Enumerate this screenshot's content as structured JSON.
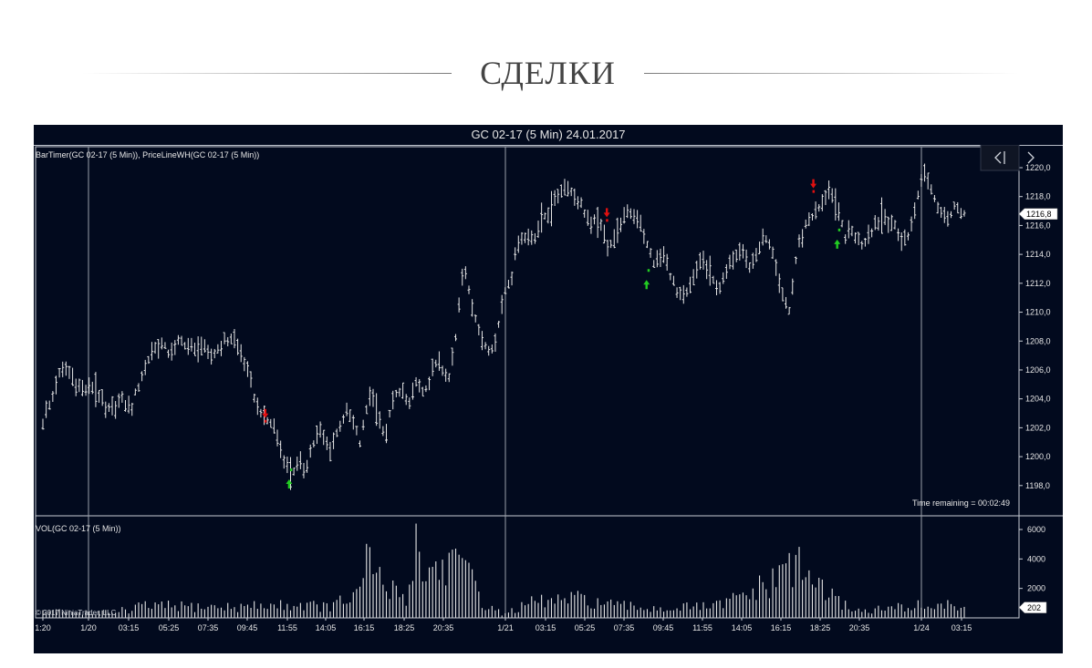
{
  "heading": {
    "title": "СДЕЛКИ"
  },
  "chart_title": "GC 02-17 (5 Min)  24.01.2017",
  "colors": {
    "background": "#020a1e",
    "bars": "#e6e6e6",
    "sell": "#e01010",
    "buy": "#22cc22",
    "grid": "#c8ccd4"
  },
  "icons": {
    "prev": "chevron-left-icon",
    "next": "chevron-right-icon"
  },
  "chart_data": [
    {
      "type": "ohlc",
      "indicator_label": "BarTimer(GC 02-17 (5 Min)), PriceLineWH(GC 02-17 (5 Min))",
      "ylim": [
        1196.5,
        1221.5
      ],
      "y_ticks": [
        "1220,0",
        "1218,0",
        "1216,0",
        "1214,0",
        "1212,0",
        "1210,0",
        "1208,0",
        "1206,0",
        "1204,0",
        "1202,0",
        "1200,0",
        "1198,0"
      ],
      "last_price": "1216,8",
      "time_remaining": "Time remaining = 00:02:49",
      "x_ticks": [
        "1:20",
        "1/20",
        "03:15",
        "05:25",
        "07:35",
        "09:45",
        "11:55",
        "14:05",
        "16:15",
        "18:25",
        "20:35",
        "1/21",
        "03:15",
        "05:25",
        "07:35",
        "09:45",
        "11:55",
        "14:05",
        "16:15",
        "18:25",
        "20:35",
        "1/24",
        "03:15"
      ],
      "session_breaks": [
        "1/20",
        "1/21",
        "1/24"
      ],
      "price_path": [
        [
          0,
          1202.3
        ],
        [
          1,
          1203.8
        ],
        [
          2,
          1205.6
        ],
        [
          3,
          1206.0
        ],
        [
          4,
          1205.2
        ],
        [
          5,
          1204.6
        ],
        [
          6,
          1204.8
        ],
        [
          7,
          1204.3
        ],
        [
          8,
          1203.0
        ],
        [
          9,
          1203.4
        ],
        [
          10,
          1204.0
        ],
        [
          11,
          1203.1
        ],
        [
          12,
          1204.8
        ],
        [
          13,
          1206.4
        ],
        [
          14,
          1207.4
        ],
        [
          15,
          1207.7
        ],
        [
          16,
          1207.0
        ],
        [
          17,
          1207.8
        ],
        [
          18,
          1207.9
        ],
        [
          19,
          1207.2
        ],
        [
          20,
          1207.6
        ],
        [
          21,
          1206.8
        ],
        [
          22,
          1207.5
        ],
        [
          23,
          1207.9
        ],
        [
          24,
          1208.4
        ],
        [
          25,
          1207.0
        ],
        [
          26,
          1205.5
        ],
        [
          27,
          1203.5
        ],
        [
          28,
          1202.6
        ],
        [
          29,
          1202.2
        ],
        [
          30,
          1200.5
        ],
        [
          31,
          1198.7
        ],
        [
          32,
          1199.4
        ],
        [
          33,
          1199.1
        ],
        [
          34,
          1200.9
        ],
        [
          35,
          1201.8
        ],
        [
          36,
          1200.4
        ],
        [
          37,
          1201.5
        ],
        [
          38,
          1203.0
        ],
        [
          39,
          1202.5
        ],
        [
          40,
          1200.8
        ],
        [
          41,
          1204.2
        ],
        [
          42,
          1203.5
        ],
        [
          43,
          1201.2
        ],
        [
          44,
          1203.6
        ],
        [
          45,
          1204.8
        ],
        [
          46,
          1203.3
        ],
        [
          47,
          1205.2
        ],
        [
          48,
          1204.0
        ],
        [
          49,
          1205.8
        ],
        [
          50,
          1206.6
        ],
        [
          51,
          1204.9
        ],
        [
          52,
          1208.2
        ],
        [
          53,
          1213.5
        ],
        [
          54,
          1210.5
        ],
        [
          55,
          1208.4
        ],
        [
          56,
          1207.6
        ],
        [
          57,
          1207.8
        ],
        [
          58,
          1211.3
        ],
        [
          59,
          1212.5
        ],
        [
          60,
          1215.1
        ],
        [
          61,
          1215.0
        ],
        [
          62,
          1215.3
        ],
        [
          63,
          1216.5
        ],
        [
          64,
          1217.1
        ],
        [
          65,
          1218.3
        ],
        [
          66,
          1218.7
        ],
        [
          67,
          1218.0
        ],
        [
          68,
          1217.1
        ],
        [
          69,
          1215.9
        ],
        [
          70,
          1216.3
        ],
        [
          71,
          1214.6
        ],
        [
          72,
          1215.2
        ],
        [
          73,
          1216.5
        ],
        [
          74,
          1216.9
        ],
        [
          75,
          1216.5
        ],
        [
          76,
          1214.7
        ],
        [
          77,
          1213.3
        ],
        [
          78,
          1214.0
        ],
        [
          79,
          1212.7
        ],
        [
          80,
          1211.0
        ],
        [
          81,
          1211.2
        ],
        [
          82,
          1212.4
        ],
        [
          83,
          1213.8
        ],
        [
          84,
          1212.5
        ],
        [
          85,
          1211.5
        ],
        [
          86,
          1212.6
        ],
        [
          87,
          1213.7
        ],
        [
          88,
          1214.7
        ],
        [
          89,
          1212.9
        ],
        [
          90,
          1214.3
        ],
        [
          91,
          1215.3
        ],
        [
          92,
          1213.7
        ],
        [
          93,
          1211.0
        ],
        [
          94,
          1210.1
        ],
        [
          95,
          1214.4
        ],
        [
          96,
          1215.9
        ],
        [
          97,
          1216.8
        ],
        [
          98,
          1217.4
        ],
        [
          99,
          1218.4
        ],
        [
          100,
          1216.9
        ],
        [
          101,
          1215.3
        ],
        [
          102,
          1215.6
        ],
        [
          103,
          1214.7
        ],
        [
          104,
          1215.3
        ],
        [
          105,
          1216.2
        ],
        [
          106,
          1216.6
        ],
        [
          107,
          1216.0
        ],
        [
          108,
          1215.1
        ],
        [
          109,
          1215.2
        ],
        [
          110,
          1217.6
        ],
        [
          111,
          1219.8
        ],
        [
          112,
          1218.2
        ],
        [
          113,
          1217.1
        ],
        [
          114,
          1216.4
        ],
        [
          115,
          1217.4
        ],
        [
          116,
          1216.8
        ]
      ],
      "sell_markers": [
        [
          28,
          1202.8
        ],
        [
          71,
          1216.7
        ],
        [
          97,
          1218.7
        ]
      ],
      "buy_markers": [
        [
          31,
          1198.3
        ],
        [
          76,
          1212.1
        ],
        [
          100,
          1214.9
        ]
      ]
    },
    {
      "type": "bar",
      "indicator_label": "VOL(GC 02-17 (5 Min))",
      "ylim": [
        0,
        7000
      ],
      "y_ticks": [
        "6000",
        "4000",
        "2000"
      ],
      "last_volume": "202",
      "copyright": "© 2017 NinjaTrader, LLC",
      "volume_profile": [
        [
          0,
          500
        ],
        [
          9,
          400
        ],
        [
          10,
          700
        ],
        [
          11,
          300
        ],
        [
          12,
          900
        ],
        [
          24,
          800
        ],
        [
          27,
          900
        ],
        [
          33,
          1000
        ],
        [
          36,
          800
        ],
        [
          40,
          1800
        ],
        [
          41,
          4600
        ],
        [
          43,
          2200
        ],
        [
          46,
          1600
        ],
        [
          47,
          6200
        ],
        [
          48,
          3200
        ],
        [
          52,
          4400
        ],
        [
          54,
          2600
        ],
        [
          56,
          800
        ],
        [
          58,
          300
        ],
        [
          62,
          1200
        ],
        [
          68,
          1400
        ],
        [
          72,
          900
        ],
        [
          78,
          700
        ],
        [
          85,
          900
        ],
        [
          88,
          1600
        ],
        [
          92,
          2600
        ],
        [
          94,
          4200
        ],
        [
          96,
          3200
        ],
        [
          98,
          2200
        ],
        [
          100,
          1200
        ],
        [
          103,
          500
        ],
        [
          110,
          900
        ],
        [
          116,
          900
        ]
      ],
      "volume_spikes": [
        [
          41,
          4800
        ],
        [
          47,
          6400
        ],
        [
          52,
          4700
        ],
        [
          94,
          4400
        ],
        [
          98,
          2600
        ]
      ]
    }
  ]
}
